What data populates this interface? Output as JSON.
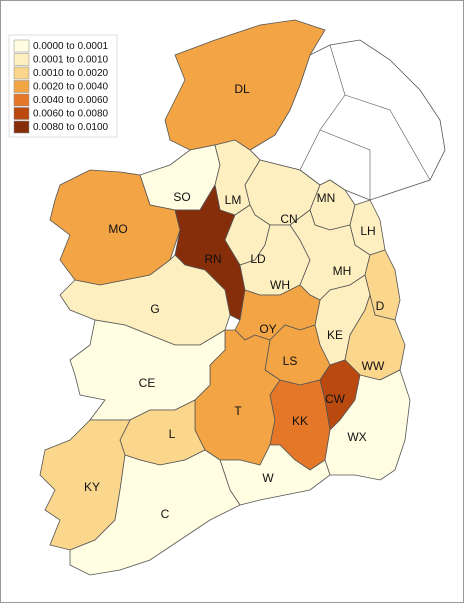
{
  "legend": {
    "items": [
      {
        "label": "0.0000 to 0.0001",
        "color": "#fffde2"
      },
      {
        "label": "0.0001 to 0.0010",
        "color": "#fdefbf"
      },
      {
        "label": "0.0010 to 0.0020",
        "color": "#fbd68d"
      },
      {
        "label": "0.0020 to 0.0040",
        "color": "#f3a545"
      },
      {
        "label": "0.0040 to 0.0060",
        "color": "#e57828"
      },
      {
        "label": "0.0060 to 0.0080",
        "color": "#b9490f"
      },
      {
        "label": "0.0080 to 0.0100",
        "color": "#862d0a"
      }
    ]
  },
  "regions": [
    {
      "label": "DL",
      "color": "#f3a545"
    },
    {
      "label": "SO",
      "color": "#fffde2"
    },
    {
      "label": "LM",
      "color": "#fdefbf"
    },
    {
      "label": "CN",
      "color": "#fdefbf"
    },
    {
      "label": "MN",
      "color": "#fdefbf"
    },
    {
      "label": "LH",
      "color": "#fdefbf"
    },
    {
      "label": "MO",
      "color": "#f3a545"
    },
    {
      "label": "RN",
      "color": "#862d0a"
    },
    {
      "label": "LD",
      "color": "#fdefbf"
    },
    {
      "label": "WH",
      "color": "#fdefbf"
    },
    {
      "label": "MH",
      "color": "#fdefbf"
    },
    {
      "label": "D",
      "color": "#fbd68d"
    },
    {
      "label": "KE",
      "color": "#fdefbf"
    },
    {
      "label": "WW",
      "color": "#fbd68d"
    },
    {
      "label": "G",
      "color": "#fdefbf"
    },
    {
      "label": "OY",
      "color": "#f3a545"
    },
    {
      "label": "LS",
      "color": "#f3a545"
    },
    {
      "label": "T",
      "color": "#f3a545"
    },
    {
      "label": "CE",
      "color": "#fffde2"
    },
    {
      "label": "L",
      "color": "#fbd68d"
    },
    {
      "label": "KK",
      "color": "#e57828"
    },
    {
      "label": "CW",
      "color": "#b9490f"
    },
    {
      "label": "WX",
      "color": "#fffde2"
    },
    {
      "label": "W",
      "color": "#fffde2"
    },
    {
      "label": "KY",
      "color": "#fbd68d"
    },
    {
      "label": "C",
      "color": "#fffde2"
    }
  ]
}
